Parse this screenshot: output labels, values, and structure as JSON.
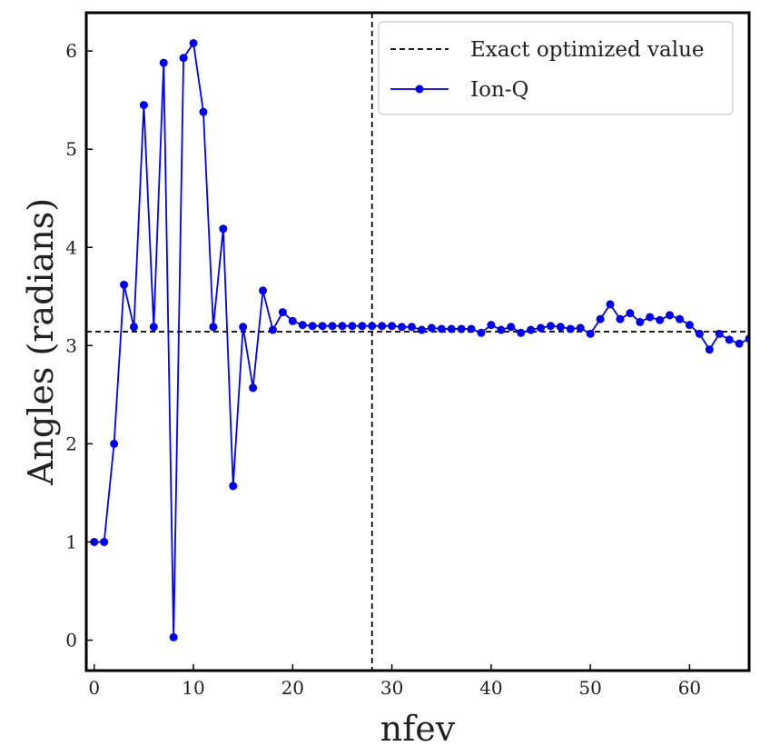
{
  "chart_data": {
    "type": "line",
    "title": "",
    "xlabel": "nfev",
    "ylabel": "Angles (radians)",
    "xlim": [
      -0.8,
      66
    ],
    "ylim": [
      -0.31,
      6.39
    ],
    "xticks": [
      0,
      10,
      20,
      30,
      40,
      50,
      60
    ],
    "yticks": [
      0,
      1,
      2,
      3,
      4,
      5,
      6
    ],
    "grid": false,
    "legend_position": "top-right",
    "reference_lines": [
      {
        "name": "Exact optimized value",
        "orientation": "horizontal",
        "value": 3.1416,
        "style": "dashed",
        "color": "#000000"
      },
      {
        "orientation": "vertical",
        "value": 28,
        "style": "dashed",
        "color": "#000000"
      }
    ],
    "series": [
      {
        "name": "Ion-Q",
        "color": "#0000ff",
        "marker": "circle",
        "x": [
          0,
          1,
          2,
          3,
          4,
          5,
          6,
          7,
          8,
          9,
          10,
          11,
          12,
          13,
          14,
          15,
          16,
          17,
          18,
          19,
          20,
          21,
          22,
          23,
          24,
          25,
          26,
          27,
          28,
          29,
          30,
          31,
          32,
          33,
          34,
          35,
          36,
          37,
          38,
          39,
          40,
          41,
          42,
          43,
          44,
          45,
          46,
          47,
          48,
          49,
          50,
          51,
          52,
          53,
          54,
          55,
          56,
          57,
          58,
          59,
          60,
          61,
          62,
          63,
          64,
          65,
          66
        ],
        "y": [
          1.0,
          1.0,
          2.0,
          3.62,
          3.19,
          5.45,
          3.19,
          5.88,
          0.03,
          5.93,
          6.08,
          5.38,
          3.19,
          4.19,
          1.57,
          3.19,
          2.57,
          3.56,
          3.16,
          3.34,
          3.25,
          3.21,
          3.2,
          3.2,
          3.2,
          3.2,
          3.2,
          3.2,
          3.2,
          3.2,
          3.2,
          3.19,
          3.19,
          3.16,
          3.18,
          3.17,
          3.17,
          3.17,
          3.17,
          3.13,
          3.21,
          3.16,
          3.19,
          3.13,
          3.16,
          3.18,
          3.2,
          3.19,
          3.17,
          3.18,
          3.12,
          3.27,
          3.42,
          3.27,
          3.33,
          3.24,
          3.29,
          3.26,
          3.31,
          3.27,
          3.21,
          3.12,
          2.96,
          3.12,
          3.06,
          3.02,
          3.07
        ]
      }
    ]
  }
}
